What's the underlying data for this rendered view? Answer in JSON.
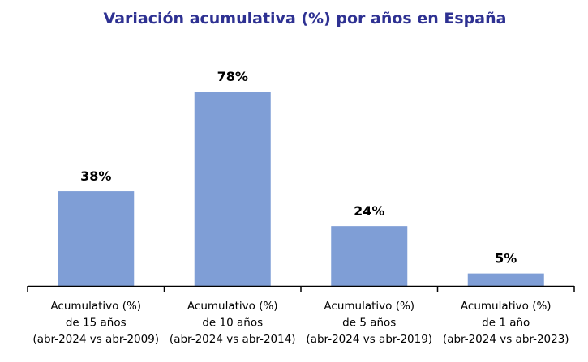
{
  "chart_data": {
    "type": "bar",
    "title": "Variación acumulativa (%) por años en España",
    "categories": [
      [
        "Acumulativo (%)",
        "de 15 años",
        "(abr-2024 vs abr-2009)"
      ],
      [
        "Acumulativo (%)",
        "de 10 años",
        "(abr-2024 vs abr-2014)"
      ],
      [
        "Acumulativo (%)",
        "de 5 años",
        "(abr-2024 vs abr-2019)"
      ],
      [
        "Acumulativo (%)",
        "de 1 año",
        "(abr-2024 vs abr-2023)"
      ]
    ],
    "values": [
      38,
      78,
      24,
      5
    ],
    "data_labels": [
      "38%",
      "78%",
      "24%",
      "5%"
    ],
    "xlabel": "",
    "ylabel": "",
    "ylim": [
      0,
      78
    ],
    "grid": false,
    "legend": "none",
    "bar_color": "#7F9ED6",
    "title_color": "#2E3192"
  }
}
